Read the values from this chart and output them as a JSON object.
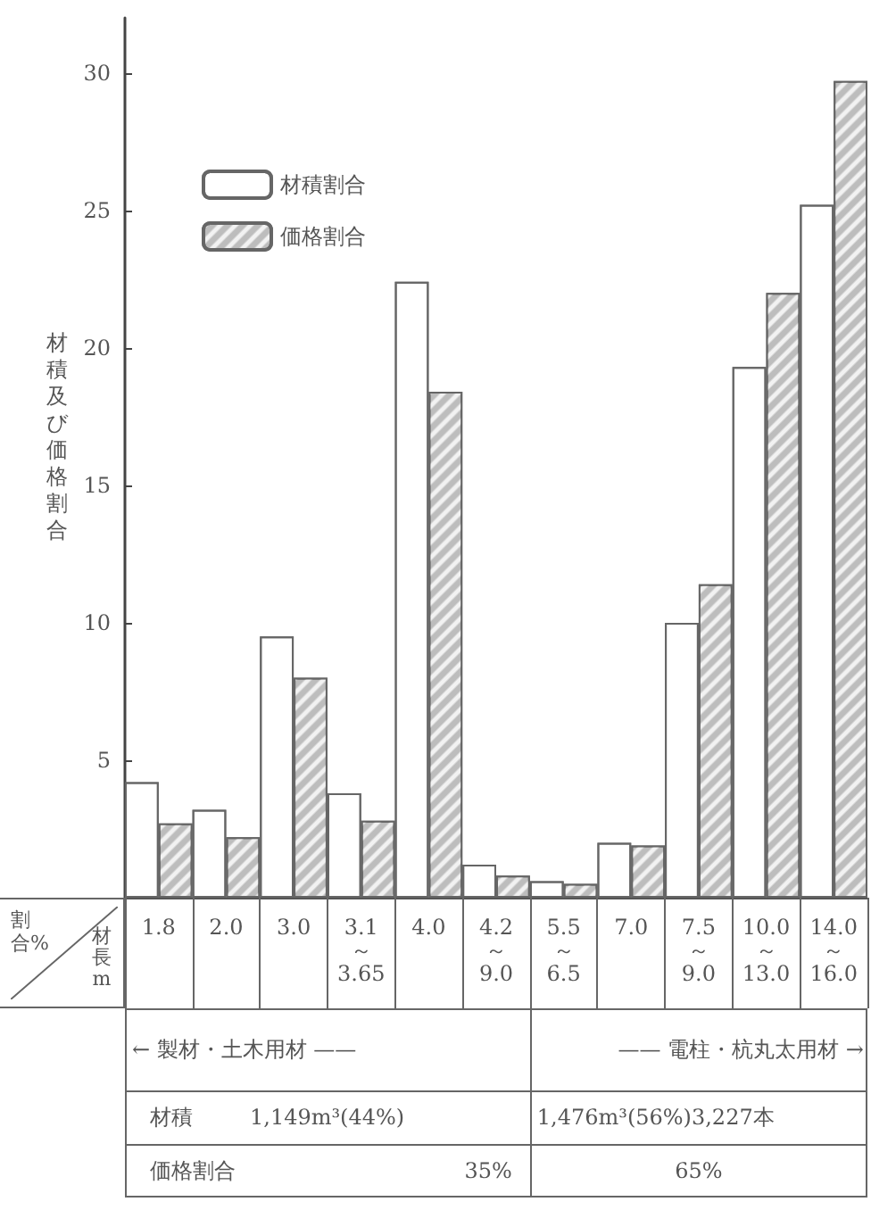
{
  "chart_data": {
    "type": "bar",
    "ylabel": "材積及び価格割合",
    "categories": [
      "1.8",
      "2.0",
      "3.0",
      "3.1～3.65",
      "4.0",
      "4.2～9.0",
      "5.5～6.5",
      "7.0",
      "7.5～9.0",
      "10.0～13.0",
      "14.0～16.0"
    ],
    "series": [
      {
        "name": "材積割合",
        "color": "#ffffff",
        "values": [
          4.2,
          3.2,
          9.5,
          3.8,
          22.4,
          1.2,
          0.6,
          2.0,
          10.0,
          19.3,
          25.2
        ]
      },
      {
        "name": "価格割合",
        "color": "#bdbdbd",
        "values": [
          2.7,
          2.2,
          8.0,
          2.8,
          18.4,
          0.8,
          0.5,
          1.9,
          11.4,
          22.0,
          29.7
        ]
      }
    ],
    "ylim": [
      0,
      32
    ],
    "yticks": [
      5,
      10,
      15,
      20,
      25,
      30
    ],
    "legend": "top left",
    "grid": false,
    "annotations": [
      "割合%",
      "材長m",
      "← 製材・土木用材 ——",
      "—— 電柱・杭丸太用材 →",
      "材積",
      "1,149m³(44%)",
      "1,476m³(56%)3,227本",
      "価格割合",
      "35%",
      "65%"
    ]
  }
}
